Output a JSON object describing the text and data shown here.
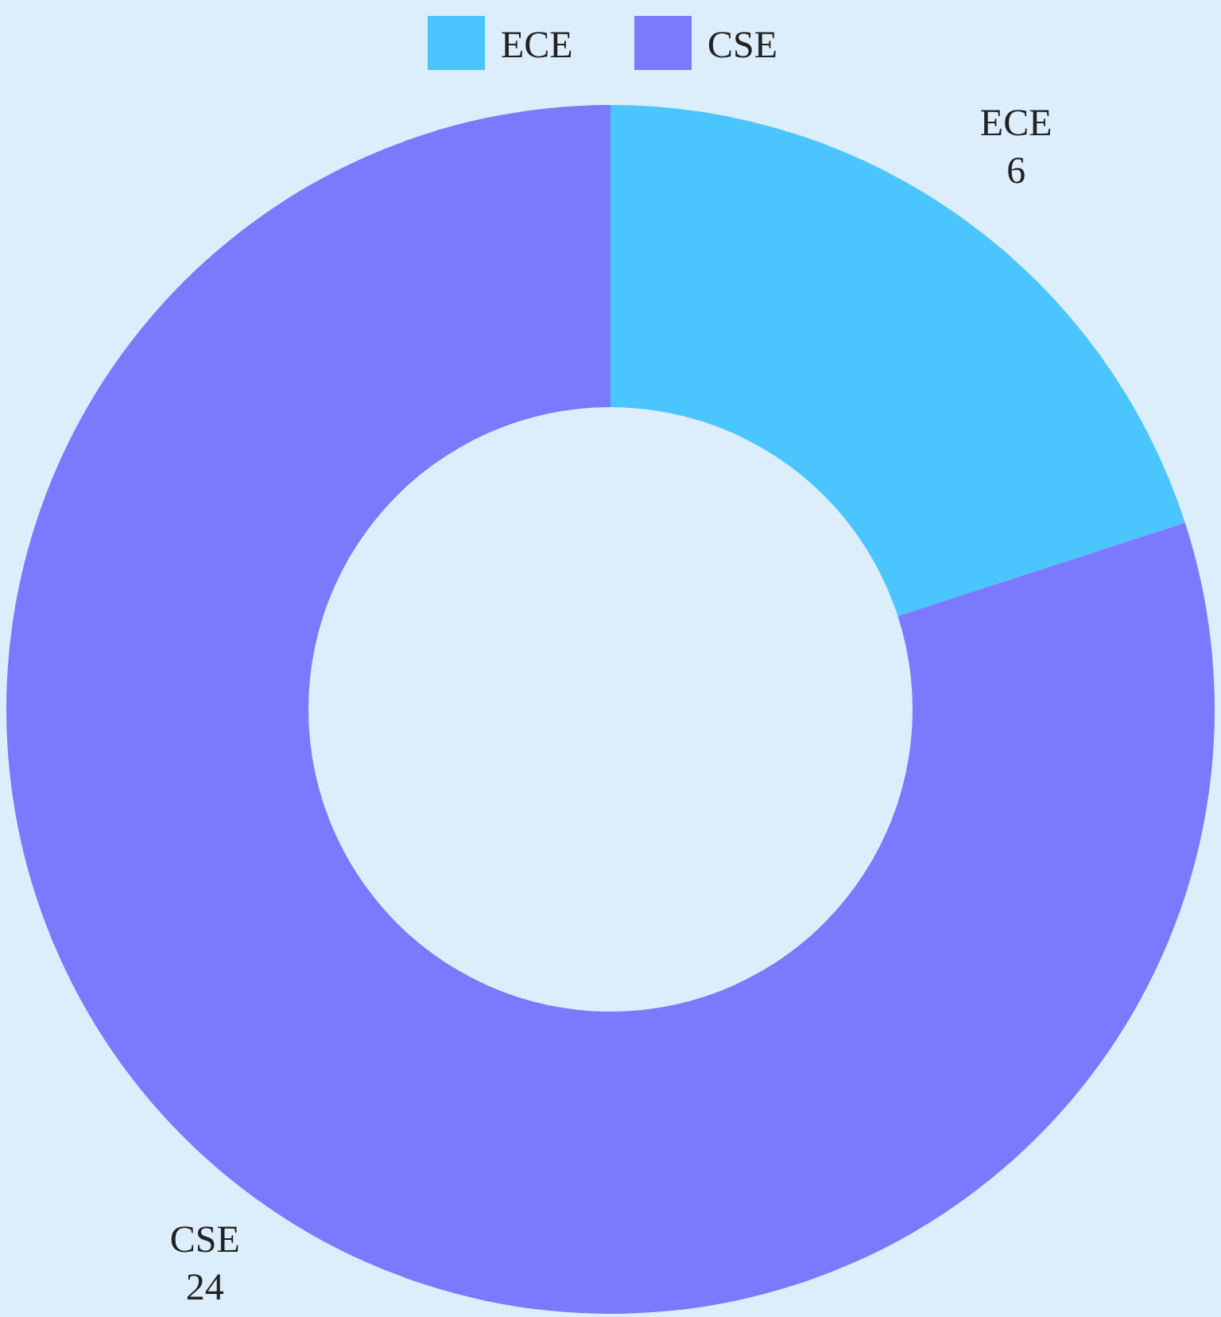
{
  "chart_data": {
    "type": "donut",
    "categories": [
      "ECE",
      "CSE"
    ],
    "values": [
      6,
      24
    ],
    "colors": [
      "#4bc5fd",
      "#7b7afe"
    ],
    "data_labels": true,
    "legend": "top"
  }
}
